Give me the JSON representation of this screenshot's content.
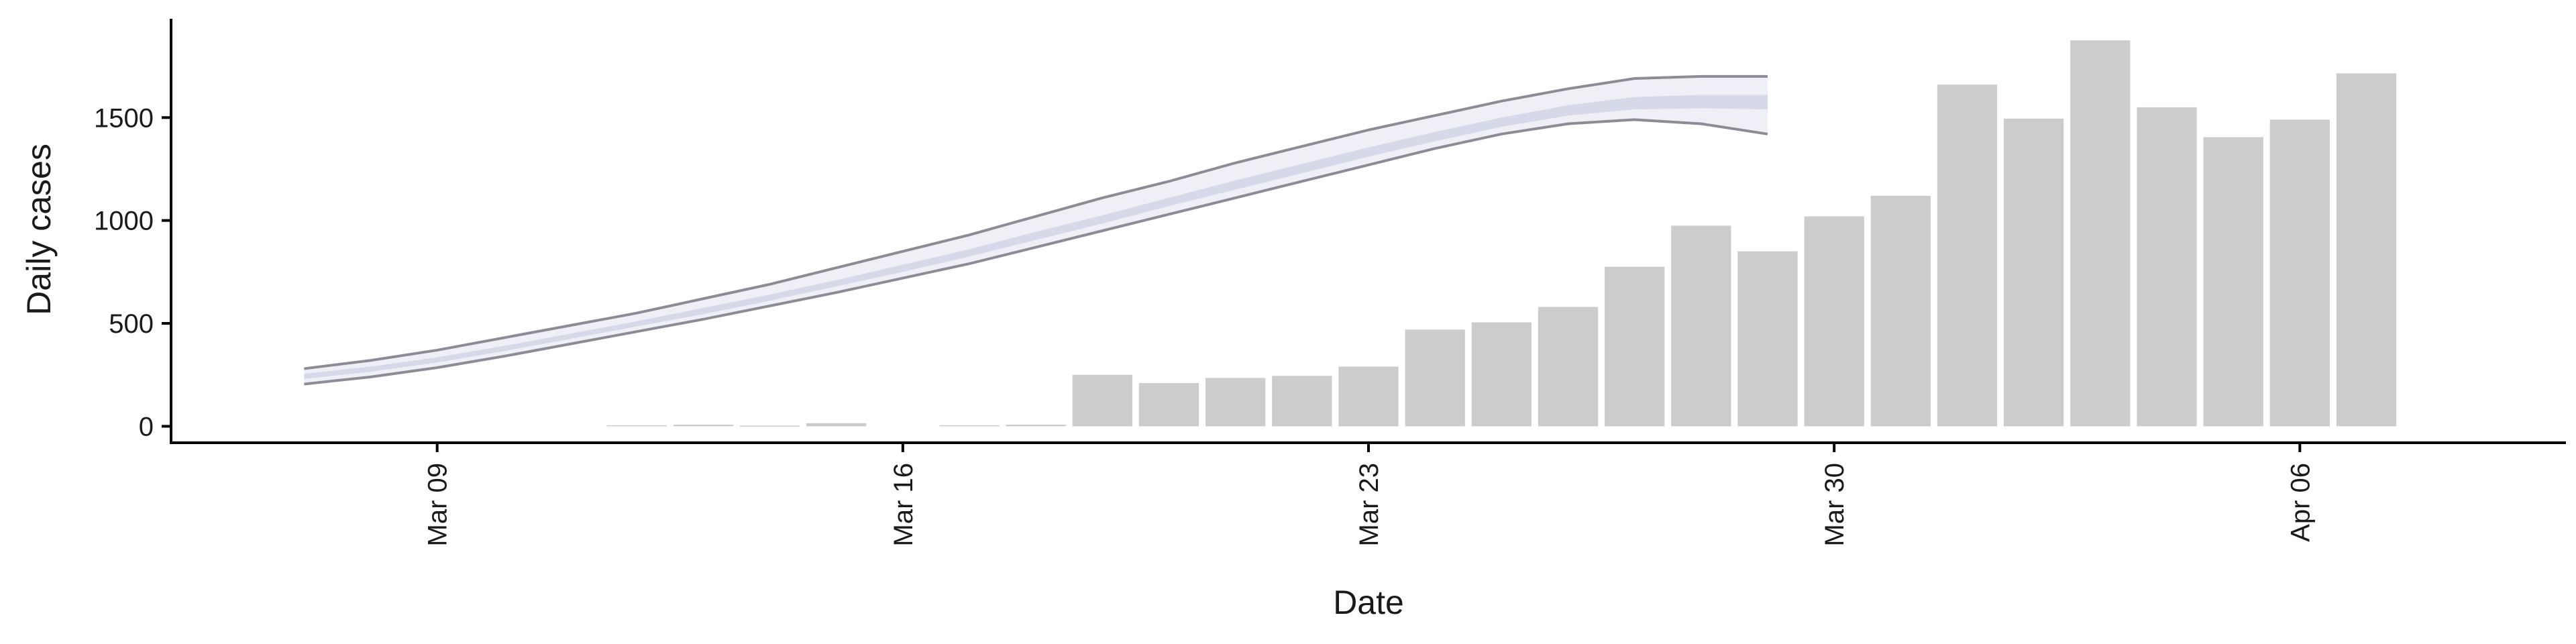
{
  "chart_data": {
    "type": "bar",
    "title": "",
    "xlabel": "Date",
    "ylabel": "Daily cases",
    "ylim": [
      -80,
      1980
    ],
    "xlim": [
      "2020-03-05",
      "2020-04-10"
    ],
    "grid": false,
    "y_ticks": [
      0,
      500,
      1000,
      1500
    ],
    "x_ticks": [
      {
        "date": "2020-03-09",
        "label": "Mar 09"
      },
      {
        "date": "2020-03-16",
        "label": "Mar 16"
      },
      {
        "date": "2020-03-23",
        "label": "Mar 23"
      },
      {
        "date": "2020-03-30",
        "label": "Mar 30"
      },
      {
        "date": "2020-04-06",
        "label": "Apr 06"
      }
    ],
    "bars": {
      "x": [
        "2020-03-12",
        "2020-03-13",
        "2020-03-14",
        "2020-03-15",
        "2020-03-17",
        "2020-03-18",
        "2020-03-19",
        "2020-03-20",
        "2020-03-21",
        "2020-03-22",
        "2020-03-23",
        "2020-03-24",
        "2020-03-25",
        "2020-03-26",
        "2020-03-27",
        "2020-03-28",
        "2020-03-29",
        "2020-03-30",
        "2020-03-31",
        "2020-04-01",
        "2020-04-02",
        "2020-04-03",
        "2020-04-04",
        "2020-04-05",
        "2020-04-06",
        "2020-04-07"
      ],
      "values": [
        5,
        8,
        3,
        15,
        5,
        8,
        250,
        210,
        235,
        245,
        290,
        470,
        505,
        580,
        775,
        975,
        850,
        1020,
        1120,
        1660,
        1495,
        1875,
        1550,
        1405,
        1490,
        1715
      ]
    },
    "projection": {
      "x": [
        "2020-03-07",
        "2020-03-08",
        "2020-03-09",
        "2020-03-10",
        "2020-03-11",
        "2020-03-12",
        "2020-03-13",
        "2020-03-14",
        "2020-03-15",
        "2020-03-16",
        "2020-03-17",
        "2020-03-18",
        "2020-03-19",
        "2020-03-20",
        "2020-03-21",
        "2020-03-22",
        "2020-03-23",
        "2020-03-24",
        "2020-03-25",
        "2020-03-26",
        "2020-03-27",
        "2020-03-28",
        "2020-03-29"
      ],
      "upper": [
        280,
        320,
        370,
        430,
        490,
        550,
        620,
        690,
        770,
        850,
        930,
        1020,
        1110,
        1190,
        1280,
        1360,
        1440,
        1510,
        1580,
        1640,
        1690,
        1700,
        1700
      ],
      "lower": [
        205,
        240,
        285,
        340,
        400,
        460,
        520,
        585,
        650,
        720,
        790,
        870,
        950,
        1030,
        1110,
        1190,
        1270,
        1350,
        1420,
        1470,
        1490,
        1470,
        1420
      ],
      "mid_upper": [
        255,
        290,
        335,
        390,
        450,
        510,
        575,
        640,
        710,
        785,
        860,
        945,
        1025,
        1110,
        1195,
        1275,
        1355,
        1430,
        1500,
        1560,
        1600,
        1610,
        1610
      ],
      "mid_lower": [
        230,
        265,
        310,
        365,
        425,
        485,
        545,
        610,
        680,
        750,
        825,
        905,
        985,
        1070,
        1150,
        1230,
        1310,
        1385,
        1455,
        1510,
        1540,
        1545,
        1540
      ]
    },
    "colors": {
      "bar": "#cccccc",
      "band_outer": "#eef0f5",
      "band_inner": "#d5d9e8",
      "band_line": "#8c8c96",
      "axis": "#000000",
      "text": "#1a1a1a"
    }
  }
}
